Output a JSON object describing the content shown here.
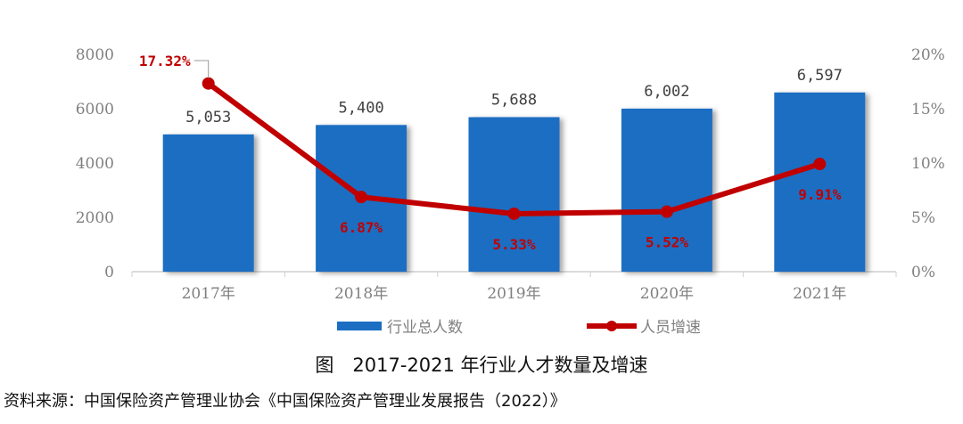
{
  "chart_data": {
    "type": "bar+line",
    "categories": [
      "2017年",
      "2018年",
      "2019年",
      "2020年",
      "2021年"
    ],
    "series": [
      {
        "name": "行业总人数",
        "type": "bar",
        "axis": "left",
        "values": [
          5053,
          5400,
          5688,
          6002,
          6597
        ],
        "labels": [
          "5,053",
          "5,400",
          "5,688",
          "6,002",
          "6,597"
        ],
        "color": "#1b6ec2"
      },
      {
        "name": "人员增速",
        "type": "line",
        "axis": "right",
        "values": [
          17.32,
          6.87,
          5.33,
          5.52,
          9.91
        ],
        "labels": [
          "17.32%",
          "6.87%",
          "5.33%",
          "5.52%",
          "9.91%"
        ],
        "color": "#c00000"
      }
    ],
    "left_axis": {
      "ylim": [
        0,
        8000
      ],
      "ticks": [
        "0",
        "2000",
        "4000",
        "6000",
        "8000"
      ]
    },
    "right_axis": {
      "ylim": [
        0,
        20
      ],
      "ticks": [
        "0%",
        "5%",
        "10%",
        "15%",
        "20%"
      ]
    },
    "legend": "bottom",
    "grid": false
  },
  "caption": "图　2017-2021 年行业人才数量及增速",
  "source": "资料来源：中国保险资产管理业协会《中国保险资产管理业发展报告（2022）》"
}
